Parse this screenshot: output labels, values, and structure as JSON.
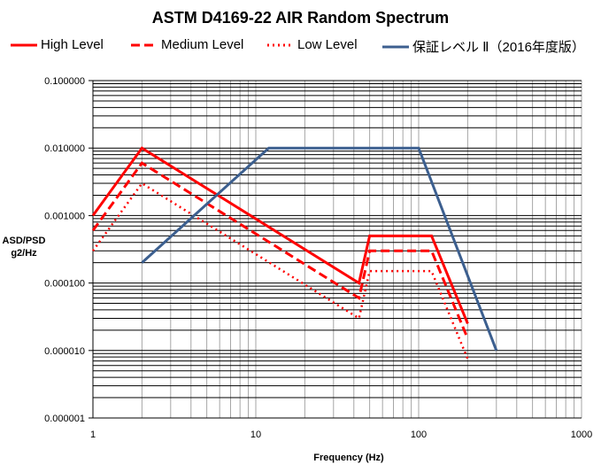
{
  "chart_data": {
    "type": "line",
    "title": "ASTM D4169-22 AIR Random Spectrum",
    "xlabel": "Frequency (Hz)",
    "ylabel": [
      "ASD/PSD",
      "g2/Hz"
    ],
    "x_scale": "log",
    "y_scale": "log",
    "xlim": [
      1,
      1000
    ],
    "ylim": [
      1e-06,
      0.1
    ],
    "x_ticks": [
      "1",
      "10",
      "100",
      "1000"
    ],
    "y_ticks": [
      "0.100000",
      "0.010000",
      "0.001000",
      "0.000100",
      "0.000010",
      "0.000001"
    ],
    "grid": true,
    "legend_position": "top",
    "series": [
      {
        "name": "High Level",
        "color": "#ff0000",
        "style": "solid",
        "x": [
          1,
          2,
          43,
          50,
          120,
          200
        ],
        "y": [
          0.001,
          0.01,
          0.0001,
          0.0005,
          0.0005,
          2.5e-05
        ]
      },
      {
        "name": "Medium Level",
        "color": "#ff0000",
        "style": "dashed",
        "x": [
          1,
          2,
          43,
          50,
          120,
          200
        ],
        "y": [
          0.0006,
          0.006,
          6e-05,
          0.0003,
          0.0003,
          1.5e-05
        ]
      },
      {
        "name": "Low Level",
        "color": "#ff0000",
        "style": "dotted",
        "x": [
          1,
          2,
          43,
          50,
          120,
          200
        ],
        "y": [
          0.0003,
          0.003,
          3e-05,
          0.00015,
          0.00015,
          7.5e-06
        ]
      },
      {
        "name": "保証レベル Ⅱ（2016年度版）",
        "color": "#3c5f8f",
        "style": "solid",
        "x": [
          2,
          12,
          100,
          300
        ],
        "y": [
          0.0002,
          0.01,
          0.01,
          1e-05
        ]
      }
    ]
  }
}
